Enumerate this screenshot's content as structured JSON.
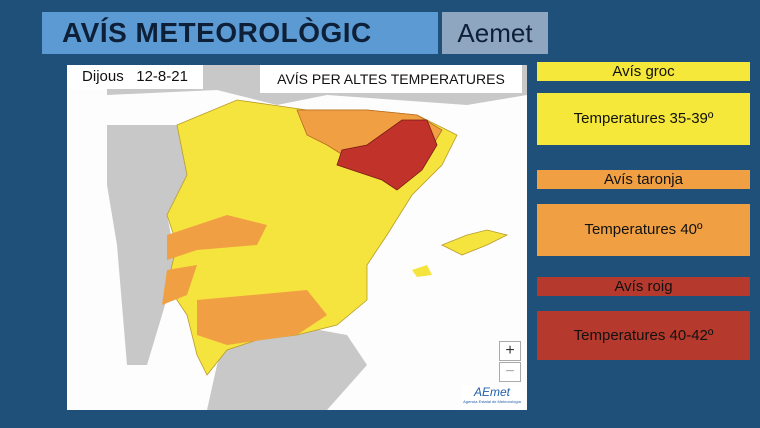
{
  "header": {
    "title": "AVÍS METEOROLÒGIC",
    "brand": "Aemet"
  },
  "map": {
    "day": "Dijous",
    "date": "12-8-21",
    "heading": "AVÍS PER ALTES TEMPERATURES",
    "zoom_in": "+",
    "zoom_out": "−",
    "logo": "AEmet",
    "logo_subtitle": "Agencia Estatal de Meteorología"
  },
  "legend": [
    {
      "level": "Avís groc",
      "range": "Temperatures 35-39º"
    },
    {
      "level": "Avís taronja",
      "range": "Temperatures 40º"
    },
    {
      "level": "Avís roig",
      "range": "Temperatures 40-42º"
    }
  ]
}
